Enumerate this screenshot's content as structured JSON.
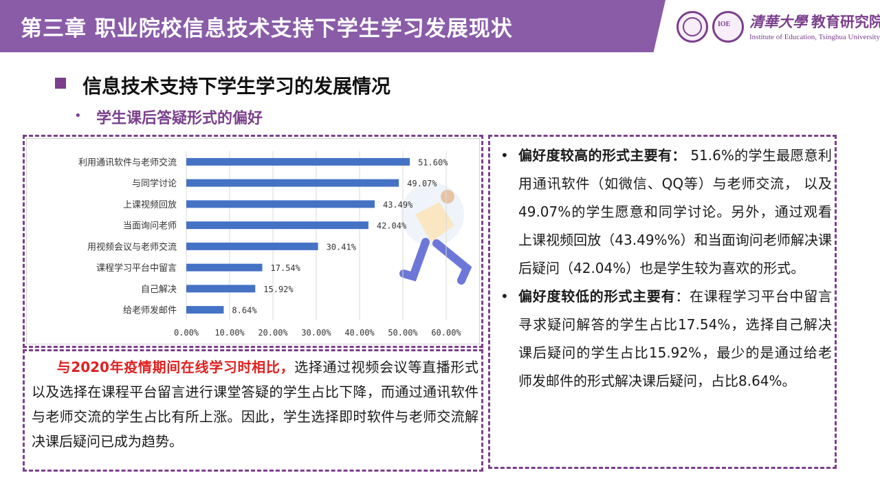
{
  "header": {
    "chapter_title": "第三章  职业院校信息技术支持下学生学习发展现状",
    "logo": {
      "name_cn_brush": "清華大學",
      "name_cn": "教育研究院",
      "name_en": "Institute of Education, Tsinghua University",
      "seal_text": "IOE"
    }
  },
  "section": {
    "title": "信息技术支持下学生学习的发展情况",
    "subtitle": "学生课后答疑形式的偏好"
  },
  "chart_data": {
    "type": "bar",
    "orientation": "horizontal",
    "categories": [
      "利用通讯软件与老师交流",
      "与同学讨论",
      "上课视频回放",
      "当面询问老师",
      "用视频会议与老师交流",
      "课程学习平台中留言",
      "自己解决",
      "给老师发邮件"
    ],
    "values": [
      51.6,
      49.07,
      43.49,
      42.04,
      30.41,
      17.54,
      15.92,
      8.64
    ],
    "value_labels": [
      "51.60%",
      "49.07%",
      "43.49%",
      "42.04%",
      "30.41%",
      "17.54%",
      "15.92%",
      "8.64%"
    ],
    "x_ticks": [
      "0.00%",
      "10.00%",
      "20.00%",
      "30.00%",
      "40.00%",
      "50.00%",
      "60.00%"
    ],
    "xlim": [
      0,
      60
    ],
    "bar_color": "#4472c4",
    "grid": true
  },
  "note": {
    "highlight": "与2020年疫情期间在线学习时相比，",
    "body": "选择通过视频会议等直播形式以及选择在课程平台留言进行课堂答疑的学生占比下降，而通过通讯软件与老师交流的学生占比有所上涨。因此，学生选择即时软件与老师交流解决课后疑问已成为趋势。"
  },
  "findings": [
    {
      "lead": "偏好度较高的形式主要有：",
      "text": "  51.6%的学生最愿意利用通讯软件（如微信、QQ等）与老师交流， 以及49.07%的学生愿意和同学讨论。另外，通过观看上课视频回放（43.49%%）和当面询问老师解决课后疑问（42.04%）也是学生较为喜欢的形式。"
    },
    {
      "lead": "偏好度较低的形式主要有",
      "text": "：在课程学习平台中留言寻求疑问解答的学生占比17.54%，选择自己解决课后疑问的学生占比15.92%，最少的是通过给老师发邮件的形式解决课后疑问，占比8.64%。"
    }
  ],
  "colors": {
    "brand_purple": "#8a5ca8",
    "accent_purple": "#7b3f8c",
    "highlight_red": "#e02020"
  }
}
